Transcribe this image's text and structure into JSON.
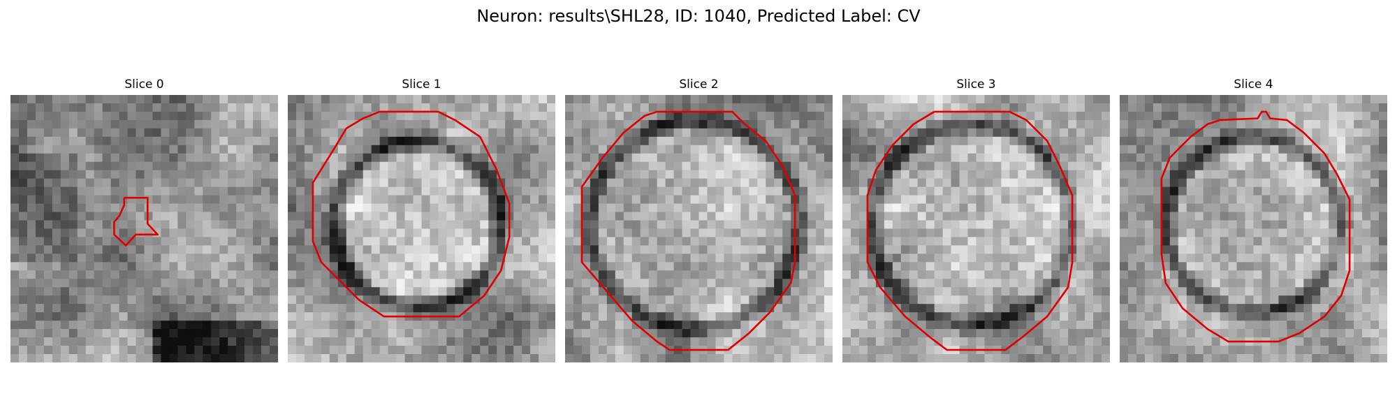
{
  "figure": {
    "title": "Neuron: results\\SHL28, ID: 1040, Predicted Label: CV"
  },
  "panels": [
    {
      "title": "Slice 0",
      "image": "grayscale-em-patch",
      "contour_color": "#e00000"
    },
    {
      "title": "Slice 1",
      "image": "grayscale-em-patch",
      "contour_color": "#e00000"
    },
    {
      "title": "Slice 2",
      "image": "grayscale-em-patch",
      "contour_color": "#e00000"
    },
    {
      "title": "Slice 3",
      "image": "grayscale-em-patch",
      "contour_color": "#e00000"
    },
    {
      "title": "Slice 4",
      "image": "grayscale-em-patch",
      "contour_color": "#e00000"
    }
  ]
}
